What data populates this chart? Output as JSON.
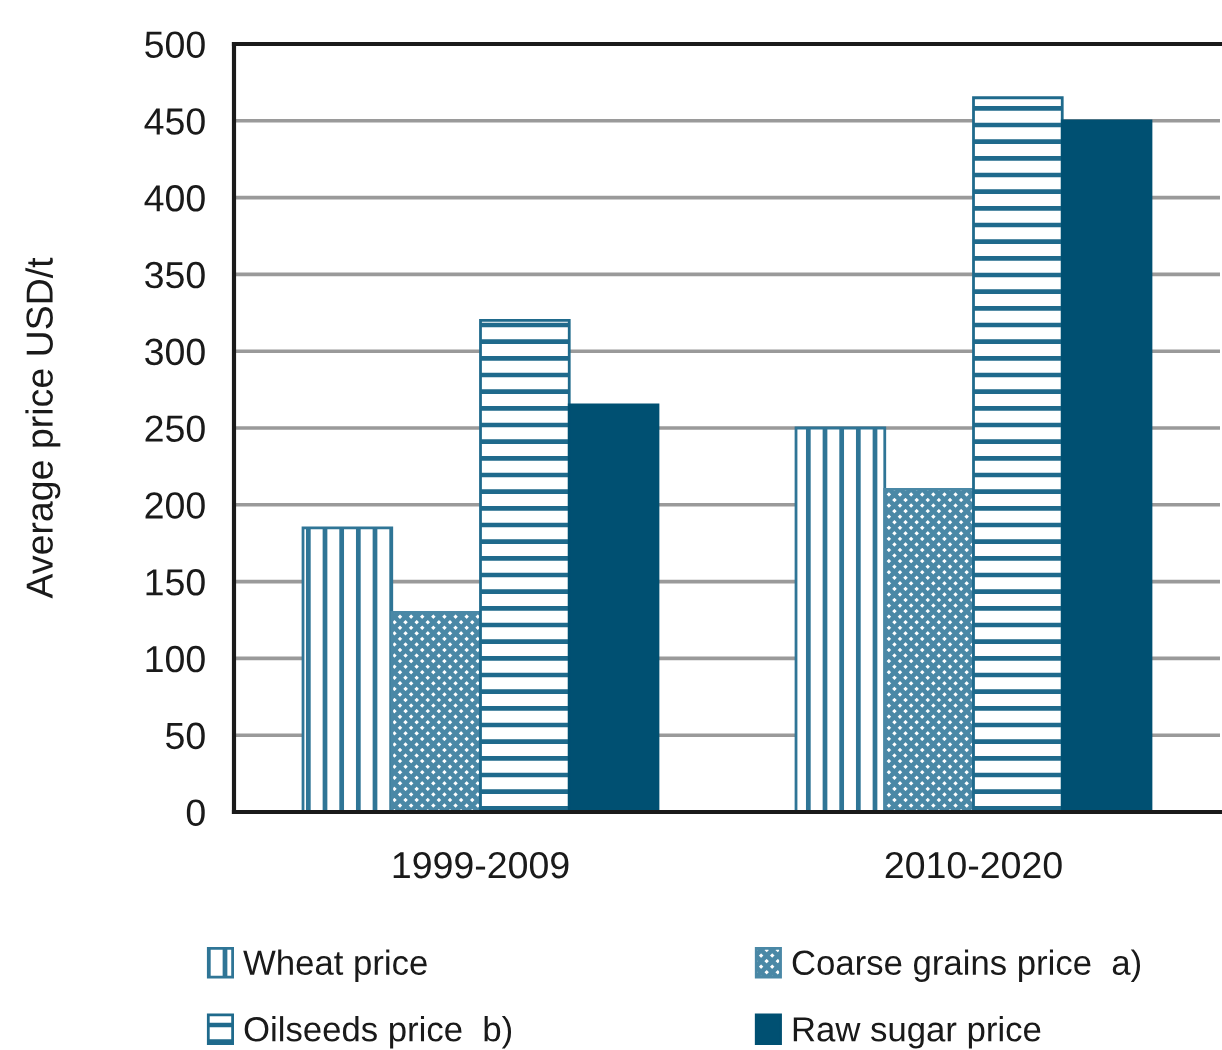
{
  "chart_data": {
    "type": "bar",
    "ylabel": "Average price USD/t",
    "categories": [
      "1999-2009",
      "2010-2020"
    ],
    "series": [
      {
        "name": "Wheat price",
        "color": "#2f7596",
        "values": [
          185,
          250
        ]
      },
      {
        "name": "Coarse grains price  a)",
        "color": "#4a88a6",
        "values": [
          130,
          210
        ]
      },
      {
        "name": "Oilseeds price  b)",
        "color": "#1f6a8c",
        "values": [
          320,
          465
        ]
      },
      {
        "name": "Raw sugar price",
        "color": "#005072",
        "values": [
          265,
          450
        ]
      }
    ],
    "ylim": [
      0,
      500
    ],
    "yticks": [
      0,
      50,
      100,
      150,
      200,
      250,
      300,
      350,
      400,
      450,
      500
    ],
    "grid": "y",
    "legend": "bottom"
  }
}
